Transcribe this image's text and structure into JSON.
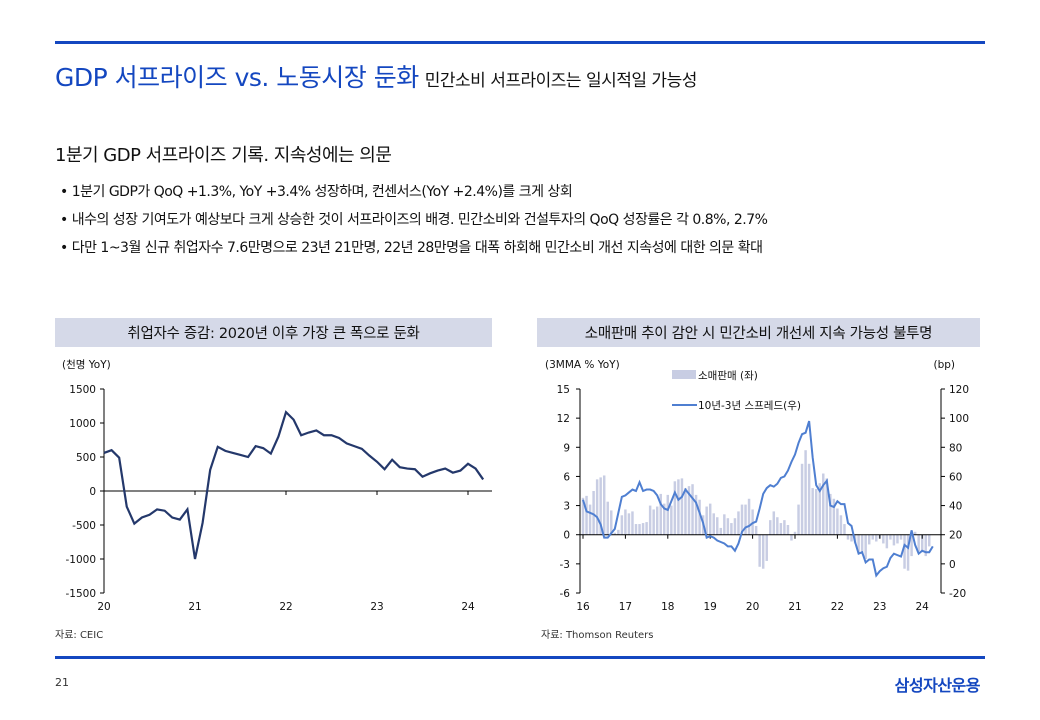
{
  "header": {
    "title": "GDP 서프라이즈 vs. 노동시장 둔화",
    "subtitle": "민간소비 서프라이즈는 일시적일 가능성"
  },
  "section": {
    "heading": "1분기 GDP 서프라이즈 기록. 지속성에는 의문",
    "bullets": [
      "• 1분기 GDP가 QoQ +1.3%, YoY +3.4% 성장하며, 컨센서스(YoY +2.4%)를 크게 상회",
      "• 내수의 성장 기여도가 예상보다 크게 상승한 것이 서프라이즈의 배경. 민간소비와 건설투자의 QoQ 성장률은 각 0.8%, 2.7%",
      "• 다만 1~3월 신규 취업자수 7.6만명으로 23년 21만명, 22년 28만명을 대폭 하회해 민간소비 개선 지속성에 대한 의문 확대"
    ]
  },
  "footer": {
    "page": "21",
    "logo": "삼성자산운용"
  },
  "colors": {
    "accent": "#1447c0",
    "line_left": "#24386b",
    "line_right": "#4f7fd1",
    "bars": "#c8cde3",
    "title_box": "#d5d9e8"
  },
  "chart_data": [
    {
      "type": "line",
      "title": "취업자수 증감: 2020년 이후 가장 큰 폭으로 둔화",
      "ylabel": "(천명 YoY)",
      "source": "자료: CEIC",
      "ylim": [
        -1500,
        1500
      ],
      "yticks": [
        1500,
        1000,
        500,
        0,
        -500,
        -1000,
        -1500
      ],
      "xticks": [
        "20",
        "21",
        "22",
        "23",
        "24"
      ],
      "x_start": "2020-01",
      "frequency": "monthly",
      "values": [
        560,
        600,
        490,
        -230,
        -480,
        -390,
        -350,
        -270,
        -290,
        -390,
        -420,
        -270,
        -1000,
        -470,
        310,
        650,
        590,
        560,
        530,
        500,
        660,
        630,
        550,
        800,
        1160,
        1050,
        820,
        860,
        890,
        820,
        820,
        780,
        700,
        660,
        620,
        520,
        430,
        320,
        460,
        350,
        330,
        320,
        210,
        260,
        300,
        330,
        270,
        300,
        400,
        330,
        170
      ]
    },
    {
      "type": "bar+line",
      "title": "소매판매 추이 감안 시 민간소비 개선세 지속 가능성 불투명",
      "ylabel": "(3MMA % YoY)",
      "y2label": "(bp)",
      "source": "자료: Thomson Reuters",
      "ylim": [
        -6,
        15
      ],
      "yticks": [
        15,
        12,
        9,
        6,
        3,
        0,
        -3,
        -6
      ],
      "y2lim": [
        -20,
        120
      ],
      "y2ticks": [
        120,
        100,
        80,
        60,
        40,
        20,
        0,
        -20
      ],
      "xticks": [
        "16",
        "17",
        "18",
        "19",
        "20",
        "21",
        "22",
        "23",
        "24"
      ],
      "x_start": "2016-01",
      "frequency": "monthly",
      "series": [
        {
          "name": "소매판매 (좌)",
          "axis": "left",
          "kind": "bar",
          "values": [
            3.8,
            4.0,
            3.1,
            4.5,
            5.7,
            5.9,
            6.1,
            3.4,
            2.5,
            0.2,
            0.5,
            2.0,
            2.6,
            2.2,
            2.4,
            1.1,
            1.1,
            1.2,
            1.3,
            3.0,
            2.6,
            2.9,
            4.2,
            3.2,
            4.1,
            3.0,
            5.5,
            5.7,
            5.8,
            4.8,
            5.0,
            5.2,
            4.1,
            3.6,
            2.0,
            2.9,
            3.2,
            2.2,
            1.8,
            0.7,
            2.1,
            1.7,
            1.2,
            1.7,
            2.4,
            3.1,
            3.1,
            3.7,
            2.6,
            0.9,
            -3.3,
            -3.5,
            -2.7,
            1.5,
            2.4,
            1.8,
            1.2,
            1.5,
            1.0,
            -0.6,
            0.3,
            3.1,
            7.3,
            8.7,
            7.3,
            4.8,
            4.7,
            5.3,
            6.3,
            5.8,
            4.2,
            3.7,
            2.7,
            2.0,
            1.1,
            -0.5,
            -0.7,
            -0.9,
            -1.9,
            -2.0,
            -2.5,
            -1.0,
            -0.5,
            -0.7,
            -0.4,
            -0.9,
            -1.4,
            -0.5,
            -1.1,
            -0.9,
            -0.5,
            -3.5,
            -3.7,
            -2.2,
            0.3,
            -1.7,
            -1.8,
            -2.2,
            -1.2
          ]
        },
        {
          "name": "10년-3년 스프레드(우)",
          "axis": "right",
          "kind": "line",
          "values": [
            44,
            36,
            35,
            34,
            32,
            27,
            18,
            18,
            21,
            24,
            35,
            46,
            47,
            49,
            51,
            50,
            56,
            50,
            51,
            51,
            50,
            47,
            41,
            38,
            37,
            43,
            49,
            44,
            46,
            51,
            48,
            45,
            42,
            35,
            28,
            18,
            19,
            18,
            16,
            15,
            14,
            12,
            12,
            9,
            14,
            22,
            25,
            26,
            28,
            29,
            38,
            48,
            52,
            54,
            53,
            55,
            59,
            60,
            64,
            70,
            75,
            83,
            89,
            90,
            98,
            73,
            54,
            50,
            54,
            57,
            40,
            39,
            43,
            41,
            41,
            28,
            26,
            15,
            7,
            8,
            1,
            3,
            3,
            -8,
            -5,
            -3,
            -2,
            4,
            7,
            6,
            5,
            13,
            11,
            23,
            13,
            7,
            9,
            8,
            8,
            12
          ]
        }
      ]
    }
  ]
}
